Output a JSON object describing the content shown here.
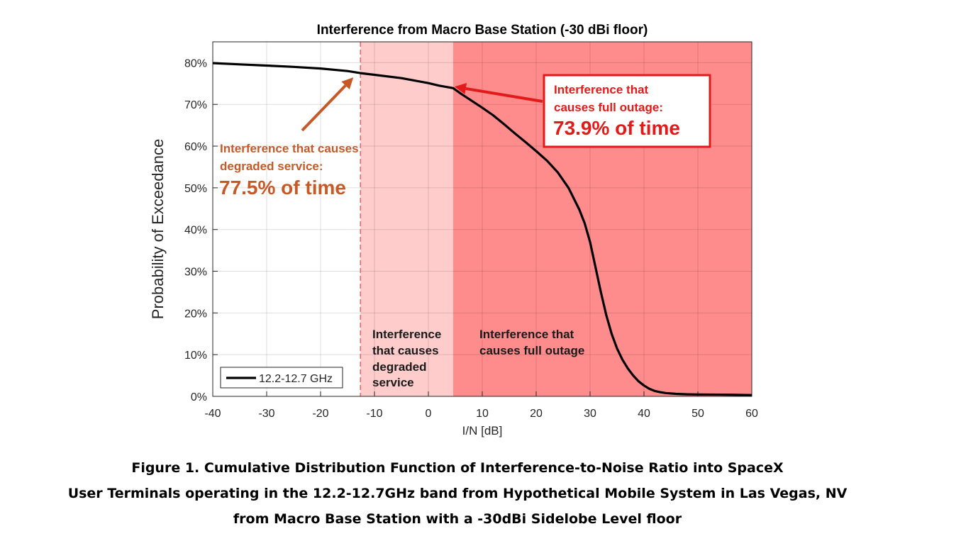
{
  "chart_data": {
    "type": "line",
    "title": "Interference from Macro Base Station (-30 dBi floor)",
    "xlabel": "I/N [dB]",
    "ylabel": "Probability of Exceedance",
    "xlim": [
      -40,
      60
    ],
    "ylim": [
      0,
      85
    ],
    "xticks": [
      "-40",
      "-30",
      "-20",
      "-10",
      "0",
      "10",
      "20",
      "30",
      "40",
      "50",
      "60"
    ],
    "yticks": [
      "0%",
      "10%",
      "20%",
      "30%",
      "40%",
      "50%",
      "60%",
      "70%",
      "80%"
    ],
    "grid": true,
    "legend": "bottom-left",
    "series": [
      {
        "name": "12.2-12.7 GHz",
        "color": "#000000",
        "x": [
          -40,
          -35,
          -30,
          -25,
          -20,
          -15,
          -12.6,
          -10,
          -5,
          0,
          2,
          4.6,
          6,
          8,
          10,
          12,
          14,
          16,
          18,
          20,
          22,
          24,
          26,
          28,
          29,
          30,
          31,
          32,
          33,
          34,
          35,
          36,
          37,
          38,
          39,
          40,
          41,
          42,
          43,
          44,
          46,
          48,
          50,
          55,
          60
        ],
        "y": [
          79.9,
          79.6,
          79.3,
          79.0,
          78.6,
          78.0,
          77.5,
          77.1,
          76.3,
          75.1,
          74.5,
          73.9,
          72.6,
          70.9,
          69.2,
          67.4,
          65.3,
          63.1,
          61.0,
          58.8,
          56.5,
          53.7,
          50.0,
          44.8,
          41.5,
          37.0,
          31.0,
          25.0,
          19.5,
          15.0,
          11.5,
          8.8,
          6.7,
          5.0,
          3.6,
          2.6,
          1.8,
          1.3,
          1.0,
          0.8,
          0.6,
          0.5,
          0.45,
          0.4,
          0.3
        ]
      }
    ],
    "regions": [
      {
        "label": "Interference that causes degraded service",
        "x_from": -12.6,
        "x_to": 4.6,
        "color": "#ffcccc"
      },
      {
        "label": "Interference that causes full outage",
        "x_from": 4.6,
        "x_to": 60,
        "color": "#ff8c8c"
      }
    ],
    "threshold_line": {
      "x": -12.6,
      "color": "#e36a6a"
    },
    "annotations": {
      "degraded": {
        "line1": "Interference that causes",
        "line2": "degraded service:",
        "value": "77.5% of time",
        "color": "#c55a28",
        "point": {
          "x": -12.6,
          "y": 77.5
        }
      },
      "outage": {
        "line1": "Interference that",
        "line2": "causes full outage:",
        "value": "73.9% of time",
        "color": "#e31a1a",
        "point": {
          "x": 4.6,
          "y": 73.9
        }
      }
    },
    "region_labels": {
      "degraded": [
        "Interference",
        "that causes",
        "degraded",
        "service"
      ],
      "outage": [
        "Interference that",
        "causes full outage"
      ]
    }
  },
  "caption": {
    "line1": "Figure 1.  Cumulative Distribution Function of Interference-to-Noise Ratio into SpaceX",
    "line2": "User Terminals operating in the 12.2-12.7GHz band from Hypothetical Mobile System in Las Vegas, NV",
    "line3": "from Macro Base Station with a -30dBi Sidelobe Level floor"
  }
}
